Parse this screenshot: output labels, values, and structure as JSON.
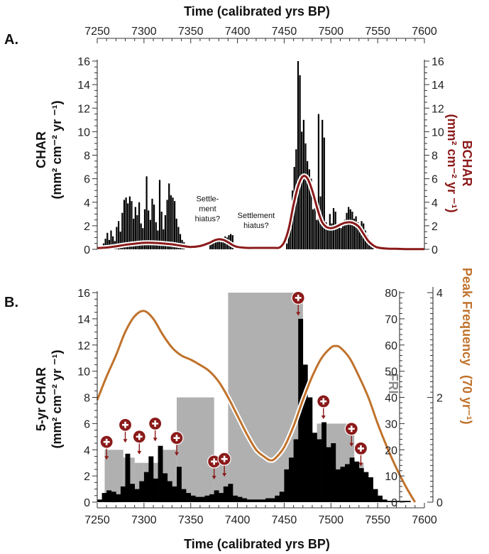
{
  "chart_data": [
    {
      "type": "bar",
      "panel": "A.",
      "top_xlabel": "Time (calibrated yrs BP)",
      "ylabel_left": [
        "CHAR",
        "(mm² cm⁻² yr ⁻¹)"
      ],
      "ylabel_right": [
        "BCHAR",
        "(mm² cm⁻² yr ⁻¹)"
      ],
      "xlim": [
        7250,
        7600
      ],
      "ylim": [
        0,
        16
      ],
      "xticks": [
        7250,
        7300,
        7350,
        7400,
        7450,
        7500,
        7550,
        7600
      ],
      "yticks": [
        0,
        2,
        4,
        6,
        8,
        10,
        12,
        14,
        16
      ],
      "annotations": [
        {
          "lines": [
            "Settle-",
            "ment",
            "hiatus?"
          ],
          "x": 7368,
          "y": 2.4
        },
        {
          "lines": [
            "Settlement",
            "hiatus?"
          ],
          "x": 7420,
          "y": 1.8
        }
      ],
      "char_bars": {
        "bin_width": 2,
        "x": [
          7252,
          7254,
          7256,
          7258,
          7260,
          7262,
          7264,
          7266,
          7268,
          7270,
          7272,
          7274,
          7276,
          7278,
          7280,
          7282,
          7284,
          7286,
          7288,
          7290,
          7292,
          7294,
          7296,
          7298,
          7300,
          7302,
          7304,
          7306,
          7308,
          7310,
          7312,
          7314,
          7316,
          7318,
          7320,
          7322,
          7324,
          7326,
          7328,
          7330,
          7332,
          7334,
          7336,
          7338,
          7340,
          7342,
          7370,
          7372,
          7374,
          7376,
          7378,
          7380,
          7382,
          7384,
          7386,
          7388,
          7390,
          7392,
          7394,
          7420,
          7422,
          7452,
          7454,
          7456,
          7458,
          7460,
          7462,
          7464,
          7466,
          7468,
          7470,
          7472,
          7474,
          7476,
          7478,
          7480,
          7482,
          7484,
          7486,
          7488,
          7490,
          7492,
          7494,
          7496,
          7498,
          7500,
          7502,
          7504,
          7506,
          7508,
          7510,
          7512,
          7514,
          7516,
          7518,
          7520,
          7522,
          7524,
          7526,
          7528,
          7530,
          7532,
          7534,
          7536,
          7538,
          7540,
          7542,
          7544,
          7580,
          7582
        ],
        "values": [
          0.3,
          0.2,
          0.5,
          0.9,
          1.4,
          0.8,
          1.6,
          1.1,
          0.7,
          1.9,
          2.4,
          1.5,
          3.1,
          4.2,
          4.4,
          3.9,
          4.5,
          4.1,
          2.6,
          3.6,
          2.9,
          4.0,
          2.2,
          1.8,
          3.4,
          6.2,
          3.3,
          2.5,
          4.3,
          3.8,
          2.3,
          1.6,
          5.9,
          3.2,
          1.7,
          2.9,
          4.2,
          5.6,
          4.6,
          4.4,
          4.1,
          2.6,
          1.9,
          1.3,
          0.8,
          0.6,
          0.4,
          0.6,
          0.7,
          0.9,
          1.0,
          0.8,
          0.6,
          0.8,
          1.1,
          1.0,
          1.2,
          1.3,
          1.2,
          0.1,
          0.1,
          0.5,
          1.5,
          2.8,
          5.0,
          7.0,
          8.5,
          16.0,
          14.8,
          10.0,
          11.0,
          9.0,
          7.5,
          6.8,
          6.0,
          3.4,
          3.5,
          2.5,
          11.5,
          4.5,
          11.0,
          9.5,
          2.3,
          2.0,
          3.0,
          2.2,
          3.5,
          3.2,
          2.0,
          2.0,
          1.8,
          2.0,
          2.5,
          3.1,
          3.6,
          3.4,
          3.2,
          2.6,
          2.8,
          2.3,
          2.0,
          2.4,
          2.2,
          1.6,
          1.2,
          0.8,
          0.4,
          0.2,
          0.1,
          0.1
        ]
      },
      "bchar_line": {
        "color": "#8b1a1a",
        "x": [
          7250,
          7260,
          7270,
          7280,
          7290,
          7300,
          7310,
          7320,
          7330,
          7340,
          7350,
          7360,
          7370,
          7375,
          7380,
          7385,
          7390,
          7395,
          7400,
          7410,
          7420,
          7430,
          7440,
          7445,
          7450,
          7455,
          7460,
          7465,
          7470,
          7475,
          7480,
          7485,
          7490,
          7495,
          7500,
          7505,
          7510,
          7515,
          7520,
          7525,
          7530,
          7535,
          7540,
          7545,
          7550,
          7560,
          7570,
          7580,
          7590,
          7600
        ],
        "y": [
          0.1,
          0.15,
          0.25,
          0.38,
          0.48,
          0.55,
          0.55,
          0.5,
          0.42,
          0.3,
          0.2,
          0.28,
          0.55,
          0.75,
          0.85,
          0.8,
          0.6,
          0.35,
          0.2,
          0.12,
          0.12,
          0.12,
          0.12,
          0.15,
          0.6,
          1.8,
          3.8,
          5.4,
          6.2,
          6.0,
          5.0,
          3.6,
          2.4,
          1.9,
          1.8,
          1.9,
          2.1,
          2.25,
          2.3,
          2.2,
          1.9,
          1.3,
          0.7,
          0.35,
          0.15,
          0.06,
          0.04,
          0.02,
          0.02,
          0.02
        ]
      }
    },
    {
      "type": "bar",
      "panel": "B.",
      "xlabel": "Time (calibrated yrs BP)",
      "ylabel_left": [
        "5-yr CHAR",
        "(mm² cm⁻² yr ⁻¹)"
      ],
      "ylabel_fri": "FRI",
      "ylabel_right": [
        "Peak Frequency",
        "(70 yr⁻¹)"
      ],
      "xlim": [
        7250,
        7600
      ],
      "ylim": [
        0,
        16
      ],
      "fri_ylim": [
        0,
        80
      ],
      "freq_ylim": [
        0,
        4
      ],
      "xticks": [
        7250,
        7300,
        7350,
        7400,
        7450,
        7500,
        7550,
        7600
      ],
      "yticks": [
        0,
        2,
        4,
        6,
        8,
        10,
        12,
        14,
        16
      ],
      "fri_ticks": [
        0,
        10,
        20,
        30,
        40,
        50,
        60,
        70,
        80
      ],
      "freq_ticks": [
        0,
        2,
        4
      ],
      "fri_intervals": {
        "color": "#b0b0b0",
        "x_start": [
          7258,
          7278,
          7290,
          7300,
          7315,
          7335,
          7375,
          7390,
          7470,
          7485,
          7525
        ],
        "x_end": [
          7278,
          7290,
          7300,
          7315,
          7335,
          7375,
          7390,
          7470,
          7485,
          7525,
          7535
        ],
        "fri": [
          20,
          17,
          15,
          15,
          20,
          40,
          15,
          80,
          15,
          30,
          15
        ]
      },
      "char5_bars": {
        "bin_width": 5,
        "x": [
          7250,
          7255,
          7260,
          7265,
          7270,
          7275,
          7280,
          7285,
          7290,
          7295,
          7300,
          7305,
          7310,
          7315,
          7320,
          7325,
          7330,
          7335,
          7340,
          7345,
          7350,
          7355,
          7360,
          7365,
          7370,
          7375,
          7380,
          7385,
          7390,
          7395,
          7400,
          7405,
          7410,
          7415,
          7420,
          7425,
          7430,
          7435,
          7440,
          7445,
          7450,
          7455,
          7460,
          7465,
          7470,
          7475,
          7480,
          7485,
          7490,
          7495,
          7500,
          7505,
          7510,
          7515,
          7520,
          7525,
          7530,
          7535,
          7540,
          7545,
          7550,
          7555,
          7560,
          7565,
          7570,
          7575,
          7580
        ],
        "values": [
          0.2,
          0.7,
          0.9,
          0.8,
          0.6,
          1.2,
          3.7,
          1.4,
          1.0,
          1.6,
          2.3,
          3.5,
          1.8,
          4.3,
          2.2,
          1.6,
          1.2,
          2.7,
          1.0,
          0.7,
          0.5,
          0.4,
          0.4,
          0.5,
          0.6,
          0.9,
          0.7,
          1.2,
          1.4,
          0.5,
          0.4,
          0.3,
          0.2,
          0.2,
          0.2,
          0.2,
          0.3,
          0.3,
          0.5,
          0.8,
          2.5,
          3.4,
          4.8,
          14.0,
          10.5,
          8.0,
          5.3,
          4.8,
          6.1,
          4.2,
          4.5,
          2.5,
          2.7,
          2.9,
          3.4,
          3.1,
          2.6,
          2.3,
          1.9,
          1.0,
          0.5,
          0.2,
          0.1,
          0.1,
          0.1,
          0.1,
          0.1
        ]
      },
      "peak_frequency_line": {
        "color": "#c0722c",
        "x": [
          7250,
          7260,
          7270,
          7280,
          7290,
          7300,
          7310,
          7320,
          7330,
          7340,
          7350,
          7360,
          7370,
          7380,
          7390,
          7400,
          7410,
          7420,
          7430,
          7435,
          7440,
          7450,
          7460,
          7470,
          7480,
          7490,
          7500,
          7505,
          7510,
          7520,
          7530,
          7540,
          7550,
          7560,
          7570,
          7580,
          7590
        ],
        "y": [
          1.95,
          2.4,
          2.8,
          3.25,
          3.55,
          3.65,
          3.5,
          3.2,
          2.95,
          2.8,
          2.72,
          2.62,
          2.5,
          2.3,
          2.0,
          1.65,
          1.3,
          1.0,
          0.85,
          0.8,
          0.83,
          1.05,
          1.45,
          1.95,
          2.4,
          2.75,
          2.95,
          2.98,
          2.95,
          2.75,
          2.4,
          2.0,
          1.5,
          1.05,
          0.65,
          0.3,
          0.0
        ]
      },
      "peaks": {
        "color": "#8b1a1a",
        "x": [
          7260,
          7280,
          7295,
          7312,
          7335,
          7375,
          7386,
          7465,
          7492,
          7522,
          7532
        ],
        "y": [
          4.6,
          5.9,
          5.0,
          6.0,
          4.9,
          3.1,
          3.3,
          15.6,
          7.7,
          5.6,
          4.1
        ]
      }
    }
  ]
}
